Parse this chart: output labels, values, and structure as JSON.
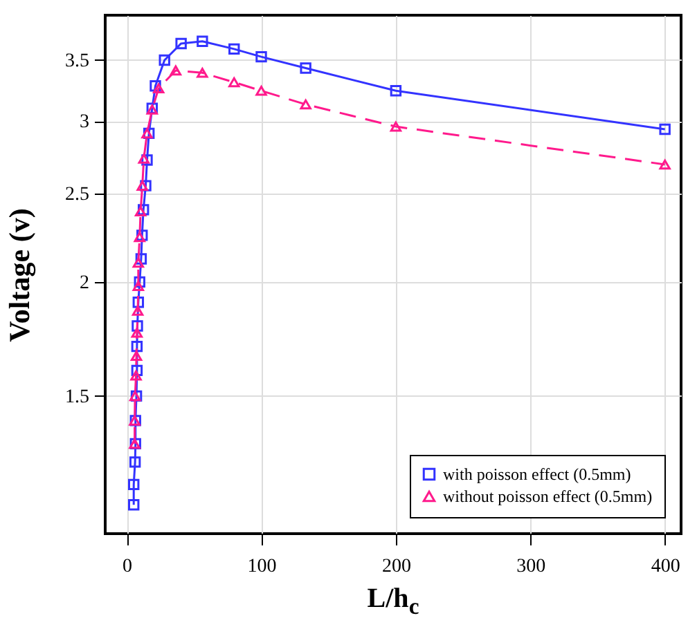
{
  "chart_data": {
    "type": "line",
    "xlabel": "L/h$_{c}$",
    "ylabel": "Voltage (v)",
    "xlim": [
      -16,
      412
    ],
    "xticks": [
      0,
      100,
      200,
      300,
      400
    ],
    "ylim": [
      1.06,
      3.92
    ],
    "yticks": [
      1.5,
      2,
      2.5,
      3,
      3.5
    ],
    "log": "y",
    "grid": true,
    "legend": "bottom right",
    "series": [
      {
        "name": "with poisson effect (0.5mm)",
        "color": "#3333ff",
        "marker": "square",
        "line_style": "solid",
        "x": [
          5.2,
          5.2,
          6.2,
          6.5,
          6.5,
          7.2,
          7.6,
          7.6,
          7.9,
          8.6,
          9.6,
          10.7,
          11.4,
          12.4,
          14.1,
          15.1,
          16.5,
          18.9,
          21.3,
          28.1,
          40.4,
          56.2,
          79.8,
          100,
          133,
          200,
          400
        ],
        "values": [
          1.14,
          1.2,
          1.27,
          1.33,
          1.41,
          1.5,
          1.6,
          1.7,
          1.79,
          1.9,
          2.0,
          2.12,
          2.25,
          2.4,
          2.55,
          2.72,
          2.91,
          3.1,
          3.28,
          3.5,
          3.65,
          3.67,
          3.6,
          3.53,
          3.43,
          3.24,
          2.94
        ]
      },
      {
        "name": "without poisson effect (0.5mm)",
        "color": "#ff1a8c",
        "marker": "triangle",
        "line_style": "dashed",
        "x": [
          5.9,
          5.9,
          6.2,
          6.9,
          7.2,
          7.6,
          8.2,
          8.6,
          8.6,
          9.6,
          10.3,
          11.6,
          12.7,
          15.1,
          18.9,
          23.7,
          36.4,
          56.2,
          79.8,
          100,
          133,
          200,
          400
        ],
        "values": [
          1.33,
          1.41,
          1.5,
          1.58,
          1.66,
          1.76,
          1.86,
          1.98,
          2.1,
          2.24,
          2.39,
          2.55,
          2.73,
          2.91,
          3.09,
          3.26,
          3.41,
          3.39,
          3.31,
          3.24,
          3.13,
          2.96,
          2.69
        ]
      }
    ]
  }
}
